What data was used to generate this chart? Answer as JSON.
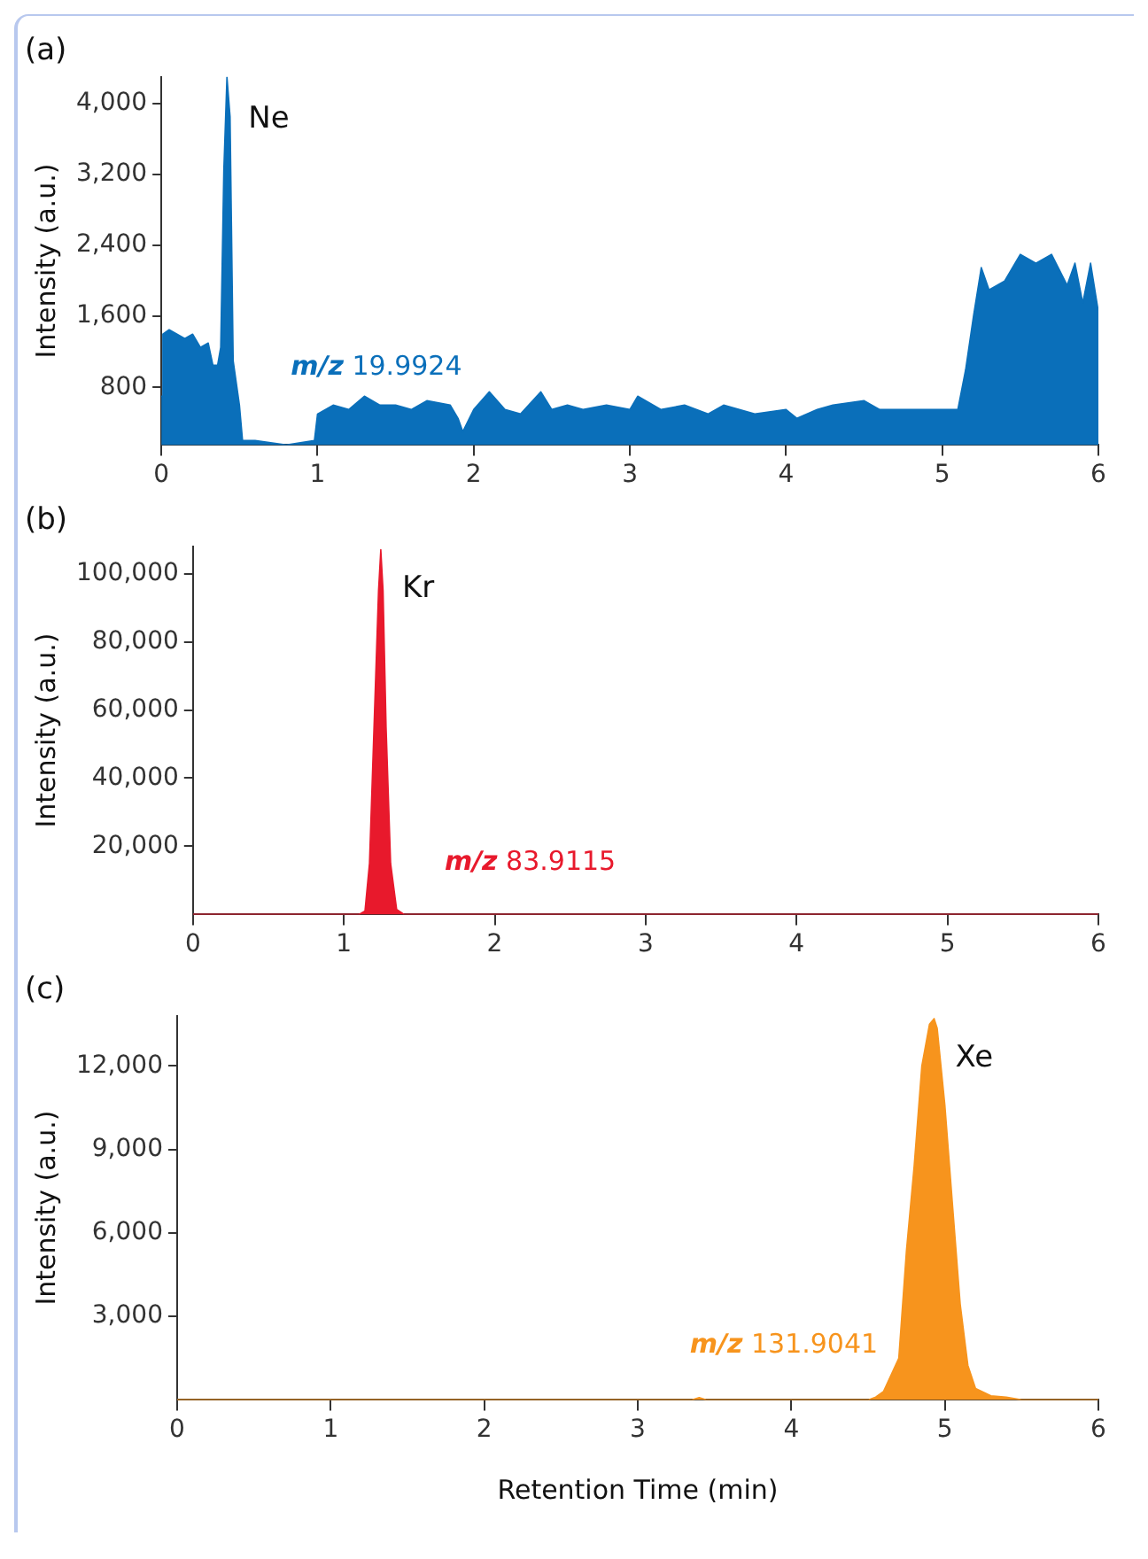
{
  "chart_data": [
    {
      "type": "area",
      "title": "(a)",
      "ylabel": "Intensity (a.u.)",
      "xlim": [
        0,
        6
      ],
      "xticks": [
        0,
        1,
        2,
        3,
        4,
        5,
        6
      ],
      "ylim": [
        150,
        4300
      ],
      "yticks": [
        {
          "value": 800,
          "label": "800"
        },
        {
          "value": 1600,
          "label": "1,600"
        },
        {
          "value": 2400,
          "label": "2,400"
        },
        {
          "value": 3200,
          "label": "3,200"
        },
        {
          "value": 4000,
          "label": "4,000"
        }
      ],
      "marker": "none",
      "annotations": [
        "Ne",
        "m/z 19.9924"
      ],
      "series": [
        {
          "color": "#0a6fba",
          "x": [
            0,
            0.01,
            0.05,
            0.1,
            0.15,
            0.2,
            0.25,
            0.3,
            0.33,
            0.36,
            0.38,
            0.4,
            0.42,
            0.44,
            0.46,
            0.5,
            0.52,
            0.6,
            0.8,
            0.98,
            1.0,
            1.05,
            1.1,
            1.2,
            1.3,
            1.4,
            1.5,
            1.6,
            1.7,
            1.85,
            1.9,
            1.93,
            2.0,
            2.1,
            2.2,
            2.3,
            2.43,
            2.5,
            2.6,
            2.7,
            2.85,
            3.0,
            3.05,
            3.2,
            3.35,
            3.5,
            3.6,
            3.8,
            4.0,
            4.07,
            4.2,
            4.3,
            4.5,
            4.6,
            4.8,
            5.0,
            5.1,
            5.15,
            5.2,
            5.25,
            5.3,
            5.4,
            5.5,
            5.6,
            5.7,
            5.8,
            5.85,
            5.9,
            5.95,
            6.0
          ],
          "values": [
            700,
            1400,
            1450,
            1400,
            1350,
            1400,
            1250,
            1300,
            1050,
            1050,
            1250,
            3250,
            4300,
            3850,
            1100,
            600,
            200,
            200,
            150,
            200,
            500,
            550,
            600,
            550,
            700,
            600,
            600,
            550,
            650,
            600,
            450,
            300,
            550,
            750,
            550,
            500,
            750,
            550,
            600,
            550,
            600,
            550,
            700,
            550,
            600,
            500,
            600,
            500,
            550,
            450,
            550,
            600,
            650,
            550,
            550,
            550,
            550,
            1000,
            1600,
            2150,
            1900,
            2000,
            2300,
            2200,
            2300,
            1950,
            2200,
            1750,
            2200,
            1650
          ]
        }
      ]
    },
    {
      "type": "area",
      "title": "(b)",
      "ylabel": "Intensity (a.u.)",
      "xlim": [
        0,
        6
      ],
      "xticks": [
        0,
        1,
        2,
        3,
        4,
        5,
        6
      ],
      "ylim": [
        0,
        108000
      ],
      "yticks": [
        {
          "value": 20000,
          "label": "20,000"
        },
        {
          "value": 40000,
          "label": "40,000"
        },
        {
          "value": 60000,
          "label": "60,000"
        },
        {
          "value": 80000,
          "label": "80,000"
        },
        {
          "value": 100000,
          "label": "100,000"
        }
      ],
      "marker": "none",
      "annotations": [
        "Kr",
        "m/z 83.9115"
      ],
      "series": [
        {
          "color": "#e8192c",
          "x": [
            0,
            1.1,
            1.14,
            1.17,
            1.2,
            1.23,
            1.245,
            1.26,
            1.28,
            1.31,
            1.35,
            1.4,
            6
          ],
          "values": [
            0,
            0,
            1000,
            15000,
            55000,
            95000,
            107000,
            95000,
            55000,
            15000,
            1500,
            0,
            0
          ]
        }
      ]
    },
    {
      "type": "area",
      "title": "(c)",
      "xlabel": "Retention Time (min)",
      "ylabel": "Intensity (a.u.)",
      "xlim": [
        0,
        6
      ],
      "xticks": [
        0,
        1,
        2,
        3,
        4,
        5,
        6
      ],
      "ylim": [
        0,
        13800
      ],
      "yticks": [
        {
          "value": 3000,
          "label": "3,000"
        },
        {
          "value": 6000,
          "label": "6,000"
        },
        {
          "value": 9000,
          "label": "9,000"
        },
        {
          "value": 12000,
          "label": "12,000"
        }
      ],
      "marker": "none",
      "annotations": [
        "Xe",
        "m/z 131.9041"
      ],
      "series": [
        {
          "color": "#f7941d",
          "x": [
            0,
            3.35,
            3.4,
            3.45,
            4.5,
            4.55,
            4.6,
            4.7,
            4.75,
            4.8,
            4.85,
            4.9,
            4.93,
            4.95,
            5.0,
            5.05,
            5.1,
            5.15,
            5.2,
            5.3,
            5.4,
            5.5,
            6
          ],
          "values": [
            0,
            0,
            80,
            0,
            0,
            100,
            300,
            1500,
            5370,
            8400,
            12000,
            13500,
            13700,
            13360,
            10600,
            7000,
            3440,
            1240,
            410,
            150,
            100,
            0,
            0
          ]
        }
      ]
    }
  ]
}
